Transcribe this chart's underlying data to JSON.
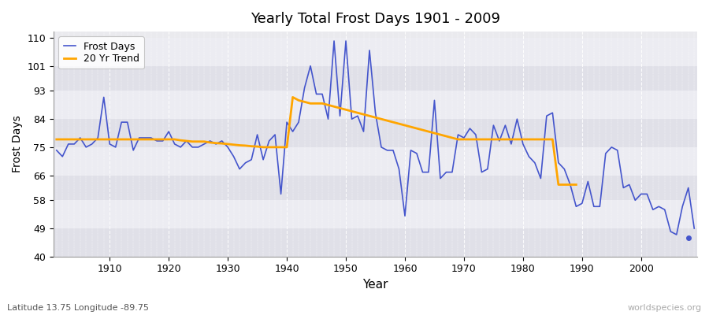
{
  "title": "Yearly Total Frost Days 1901 - 2009",
  "xlabel": "Year",
  "ylabel": "Frost Days",
  "subtitle": "Latitude 13.75 Longitude -89.75",
  "watermark": "worldspecies.org",
  "ylim": [
    40,
    112
  ],
  "yticks": [
    40,
    49,
    58,
    66,
    75,
    84,
    93,
    101,
    110
  ],
  "bg_color": "#eaeaee",
  "band_color1": "#e0e0e8",
  "band_color2": "#ececf2",
  "line_color": "#4455cc",
  "trend_color": "#ffa500",
  "years": [
    1901,
    1902,
    1903,
    1904,
    1905,
    1906,
    1907,
    1908,
    1909,
    1910,
    1911,
    1912,
    1913,
    1914,
    1915,
    1916,
    1917,
    1918,
    1919,
    1920,
    1921,
    1922,
    1923,
    1924,
    1925,
    1926,
    1927,
    1928,
    1929,
    1930,
    1931,
    1932,
    1933,
    1934,
    1935,
    1936,
    1937,
    1938,
    1939,
    1940,
    1941,
    1942,
    1943,
    1944,
    1945,
    1946,
    1947,
    1948,
    1949,
    1950,
    1951,
    1952,
    1953,
    1954,
    1955,
    1956,
    1957,
    1958,
    1959,
    1960,
    1961,
    1962,
    1963,
    1964,
    1965,
    1966,
    1967,
    1968,
    1969,
    1970,
    1971,
    1972,
    1973,
    1974,
    1975,
    1976,
    1977,
    1978,
    1979,
    1980,
    1981,
    1982,
    1983,
    1984,
    1985,
    1986,
    1987,
    1988,
    1989,
    1990,
    1991,
    1992,
    1993,
    1994,
    1995,
    1996,
    1997,
    1998,
    1999,
    2000,
    2001,
    2002,
    2003,
    2004,
    2005,
    2006,
    2007,
    2008,
    2009
  ],
  "frost_days": [
    74,
    72,
    76,
    76,
    78,
    75,
    76,
    78,
    91,
    76,
    75,
    83,
    83,
    74,
    78,
    78,
    78,
    77,
    77,
    80,
    76,
    75,
    77,
    75,
    75,
    76,
    77,
    76,
    77,
    75,
    72,
    68,
    70,
    71,
    79,
    71,
    77,
    79,
    60,
    83,
    80,
    83,
    94,
    101,
    92,
    92,
    84,
    109,
    85,
    109,
    84,
    85,
    80,
    106,
    86,
    75,
    74,
    74,
    68,
    53,
    74,
    73,
    67,
    67,
    90,
    65,
    67,
    67,
    79,
    78,
    81,
    79,
    67,
    68,
    82,
    77,
    82,
    76,
    84,
    76,
    72,
    70,
    65,
    85,
    86,
    70,
    68,
    63,
    56,
    57,
    64,
    56,
    56,
    73,
    75,
    74,
    62,
    63,
    58,
    60,
    60,
    55,
    56,
    55,
    48,
    47,
    56,
    62,
    49
  ],
  "trend_years": [
    1901,
    1902,
    1903,
    1904,
    1905,
    1906,
    1907,
    1908,
    1909,
    1910,
    1911,
    1912,
    1913,
    1914,
    1915,
    1916,
    1917,
    1918,
    1919,
    1920,
    1921,
    1922,
    1923,
    1924,
    1925,
    1926,
    1927,
    1928,
    1929,
    1930,
    1931,
    1932,
    1933,
    1934,
    1935,
    1936,
    1937,
    1938,
    1939,
    1940,
    1941,
    1942,
    1943,
    1944,
    1945,
    1946,
    1947,
    1948,
    1949,
    1950,
    1951,
    1952,
    1953,
    1954,
    1955,
    1956,
    1957,
    1958,
    1959,
    1960,
    1961,
    1962,
    1963,
    1964,
    1965,
    1966,
    1967,
    1968,
    1969,
    1970,
    1971,
    1972,
    1973,
    1974,
    1975,
    1976,
    1977,
    1978,
    1979,
    1980,
    1981,
    1982,
    1983,
    1984,
    1985,
    1986,
    1987,
    1988,
    1989
  ],
  "trend_values": [
    77.5,
    77.5,
    77.5,
    77.5,
    77.5,
    77.5,
    77.5,
    77.5,
    77.5,
    77.5,
    77.5,
    77.5,
    77.5,
    77.5,
    77.5,
    77.5,
    77.5,
    77.5,
    77.5,
    77.5,
    77.5,
    77.2,
    77.0,
    76.8,
    76.8,
    76.8,
    76.5,
    76.3,
    76.2,
    76.0,
    75.8,
    75.6,
    75.5,
    75.3,
    75.2,
    75.0,
    75.0,
    75.0,
    75.0,
    75.0,
    91.0,
    90.0,
    89.5,
    89.0,
    89.0,
    89.0,
    88.5,
    88.0,
    87.5,
    87.0,
    86.5,
    86.0,
    85.5,
    85.0,
    84.5,
    84.0,
    83.5,
    83.0,
    82.5,
    82.0,
    81.5,
    81.0,
    80.5,
    80.0,
    79.5,
    79.0,
    78.5,
    78.0,
    77.5,
    77.5,
    77.5,
    77.5,
    77.5,
    77.5,
    77.5,
    77.5,
    77.5,
    77.5,
    77.5,
    77.5,
    77.5,
    77.5,
    77.5,
    77.5,
    77.5,
    63.0,
    63.0,
    63.0,
    63.0
  ]
}
